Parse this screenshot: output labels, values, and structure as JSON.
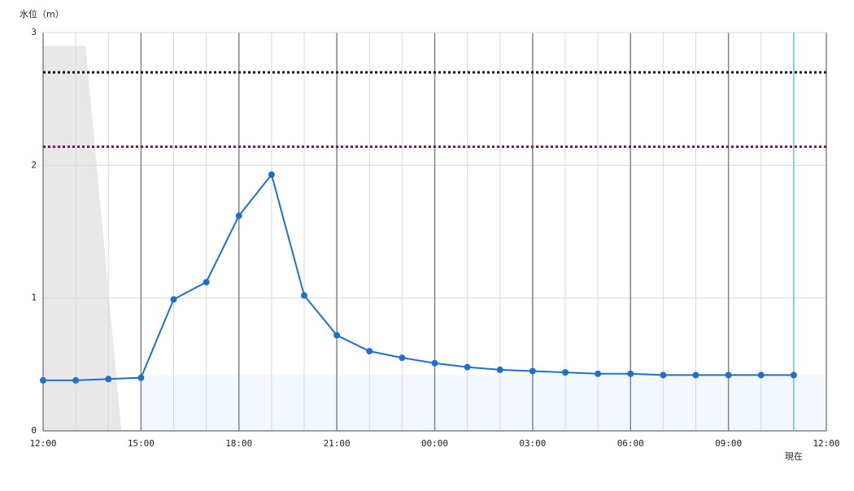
{
  "chart_data": {
    "type": "line",
    "y_label": "水位（m）",
    "x": [
      0,
      1,
      2,
      3,
      4,
      5,
      6,
      7,
      8,
      9,
      10,
      11,
      12,
      13,
      14,
      15,
      16,
      17,
      18,
      19,
      20,
      21,
      22,
      23
    ],
    "series": [
      {
        "color": "#1f6fcc",
        "values": [
          0.38,
          0.38,
          0.39,
          0.4,
          0.99,
          1.12,
          1.62,
          1.93,
          1.02,
          0.72,
          0.6,
          0.55,
          0.51,
          0.48,
          0.46,
          0.45,
          0.44,
          0.43,
          0.43,
          0.42,
          0.42,
          0.42,
          0.42,
          0.42
        ]
      }
    ],
    "xlim": [
      0,
      24
    ],
    "xticks": [
      {
        "value": 0,
        "label": "12:00"
      },
      {
        "value": 3,
        "label": "15:00"
      },
      {
        "value": 6,
        "label": "18:00"
      },
      {
        "value": 9,
        "label": "21:00"
      },
      {
        "value": 12,
        "label": "00:00"
      },
      {
        "value": 15,
        "label": "03:00"
      },
      {
        "value": 18,
        "label": "06:00"
      },
      {
        "value": 21,
        "label": "09:00"
      },
      {
        "value": 24,
        "label": "12:00"
      }
    ],
    "ylim": [
      0,
      3
    ],
    "yticks": [
      0,
      1,
      2,
      3
    ],
    "grid": true,
    "reference_lines": [
      {
        "value": 2.7,
        "color": "#111111"
      },
      {
        "value": 2.14,
        "color": "#8b0a6b"
      }
    ],
    "shade": {
      "x": [
        0,
        1.3,
        2.4
      ],
      "values": [
        2.9,
        2.9,
        0
      ],
      "color": "#e8e8e8"
    },
    "band": {
      "x": [
        3,
        24
      ],
      "values": [
        0.42,
        0.42
      ],
      "color": "#f2f8fe"
    },
    "now": {
      "x": 23,
      "label": "現在",
      "color": "#5ec8e0"
    }
  }
}
